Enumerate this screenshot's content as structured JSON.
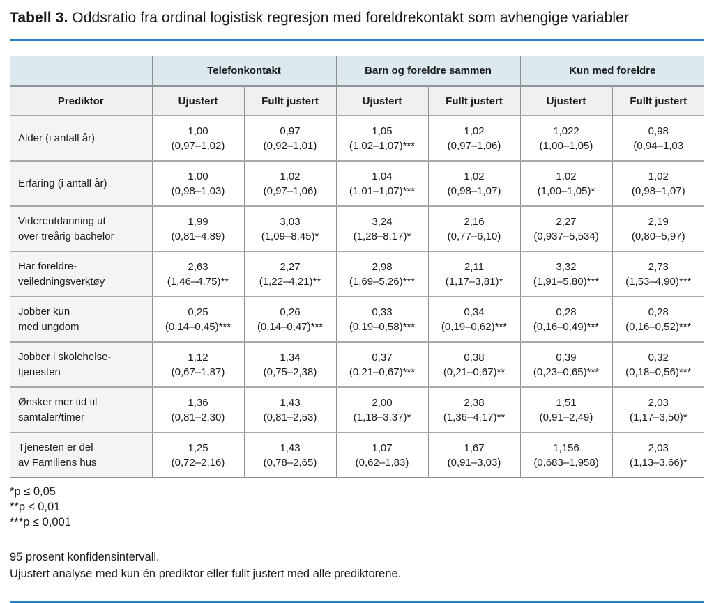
{
  "title": {
    "bold": "Tabell 3.",
    "rest": " Oddsratio fra ordinal logistisk regresjon med foreldrekontakt som avhengige variabler"
  },
  "colors": {
    "accent_blue": "#2581c4",
    "group_header_bg": "#dde8ef",
    "sub_header_bg": "#f0f0f0",
    "predictor_col_bg": "#f4f4f4"
  },
  "table": {
    "group_headers": [
      "Telefonkontakt",
      "Barn og foreldre sammen",
      "Kun med foreldre"
    ],
    "sub_headers": [
      "Prediktor",
      "Ujustert",
      "Fullt justert",
      "Ujustert",
      "Fullt justert",
      "Ujustert",
      "Fullt justert"
    ],
    "rows": [
      {
        "predictor_lines": [
          "Alder (i antall år)"
        ],
        "cells": [
          {
            "or": "1,00",
            "ci": "(0,97–1,02)"
          },
          {
            "or": "0,97",
            "ci": "(0,92–1,01)"
          },
          {
            "or": "1,05",
            "ci": "(1,02–1,07)***"
          },
          {
            "or": "1,02",
            "ci": "(0,97–1,06)"
          },
          {
            "or": "1,022",
            "ci": "(1,00–1,05)"
          },
          {
            "or": "0,98",
            "ci": "(0,94–1,03"
          }
        ]
      },
      {
        "predictor_lines": [
          "Erfaring (i antall år)"
        ],
        "cells": [
          {
            "or": "1,00",
            "ci": "(0,98–1,03)"
          },
          {
            "or": "1,02",
            "ci": "(0,97–1,06)"
          },
          {
            "or": "1,04",
            "ci": "(1,01–1,07)***"
          },
          {
            "or": "1,02",
            "ci": "(0,98–1,07)"
          },
          {
            "or": "1,02",
            "ci": "(1,00–1,05)*"
          },
          {
            "or": "1,02",
            "ci": "(0,98–1,07)"
          }
        ]
      },
      {
        "predictor_lines": [
          "Videreutdanning ut",
          "over treårig bachelor"
        ],
        "cells": [
          {
            "or": "1,99",
            "ci": "(0,81–4,89)"
          },
          {
            "or": "3,03",
            "ci": "(1,09–8,45)*"
          },
          {
            "or": "3,24",
            "ci": "(1,28–8,17)*"
          },
          {
            "or": "2,16",
            "ci": "(0,77–6,10)"
          },
          {
            "or": "2,27",
            "ci": "(0,937–5,534)"
          },
          {
            "or": "2,19",
            "ci": "(0,80–5,97)"
          }
        ]
      },
      {
        "predictor_lines": [
          "Har foreldre-",
          "veiledningsverktøy"
        ],
        "cells": [
          {
            "or": "2,63",
            "ci": "(1,46–4,75)**"
          },
          {
            "or": "2,27",
            "ci": "(1,22–4,21)**"
          },
          {
            "or": "2,98",
            "ci": "(1,69–5,26)***"
          },
          {
            "or": "2,11",
            "ci": "(1,17–3,81)*"
          },
          {
            "or": "3,32",
            "ci": "(1,91–5,80)***"
          },
          {
            "or": "2,73",
            "ci": "(1,53–4,90)***"
          }
        ]
      },
      {
        "predictor_lines": [
          "Jobber kun",
          "med ungdom"
        ],
        "cells": [
          {
            "or": "0,25",
            "ci": "(0,14–0,45)***"
          },
          {
            "or": "0,26",
            "ci": "(0,14–0,47)***"
          },
          {
            "or": "0,33",
            "ci": "(0,19–0,58)***"
          },
          {
            "or": "0,34",
            "ci": "(0,19–0,62)***"
          },
          {
            "or": "0,28",
            "ci": "(0,16–0,49)***"
          },
          {
            "or": "0,28",
            "ci": "(0,16–0,52)***"
          }
        ]
      },
      {
        "predictor_lines": [
          "Jobber i skolehelse-",
          "tjenesten"
        ],
        "cells": [
          {
            "or": "1,12",
            "ci": "(0,67–1,87)"
          },
          {
            "or": "1,34",
            "ci": "(0,75–2,38)"
          },
          {
            "or": "0,37",
            "ci": "(0,21–0,67)***"
          },
          {
            "or": "0,38",
            "ci": "(0,21–0,67)**"
          },
          {
            "or": "0,39",
            "ci": "(0,23–0,65)***"
          },
          {
            "or": "0,32",
            "ci": "(0,18–0,56)***"
          }
        ]
      },
      {
        "predictor_lines": [
          "Ønsker mer tid til",
          "samtaler/timer"
        ],
        "cells": [
          {
            "or": "1,36",
            "ci": "(0,81–2,30)"
          },
          {
            "or": "1,43",
            "ci": "(0,81–2,53)"
          },
          {
            "or": "2,00",
            "ci": "(1,18–3,37)*"
          },
          {
            "or": "2,38",
            "ci": "(1,36–4,17)**"
          },
          {
            "or": "1,51",
            "ci": "(0,91–2,49)"
          },
          {
            "or": "2,03",
            "ci": "(1,17–3,50)*"
          }
        ]
      },
      {
        "predictor_lines": [
          "Tjenesten er del",
          "av Familiens hus"
        ],
        "cells": [
          {
            "or": "1,25",
            "ci": "(0,72–2,16)"
          },
          {
            "or": "1,43",
            "ci": "(0,78–2,65)"
          },
          {
            "or": "1,07",
            "ci": "(0,62–1,83)"
          },
          {
            "or": "1,67",
            "ci": "(0,91–3,03)"
          },
          {
            "or": "1,156",
            "ci": "(0,683–1,958)"
          },
          {
            "or": "2,03",
            "ci": "(1,13–3.66)*"
          }
        ]
      }
    ]
  },
  "footnotes": [
    "*p ≤ 0,05",
    "**p ≤ 0,01",
    "***p ≤ 0,001"
  ],
  "notes": [
    "95 prosent konfidensintervall.",
    "Ujustert analyse med kun én prediktor eller fullt justert med alle prediktorene."
  ]
}
